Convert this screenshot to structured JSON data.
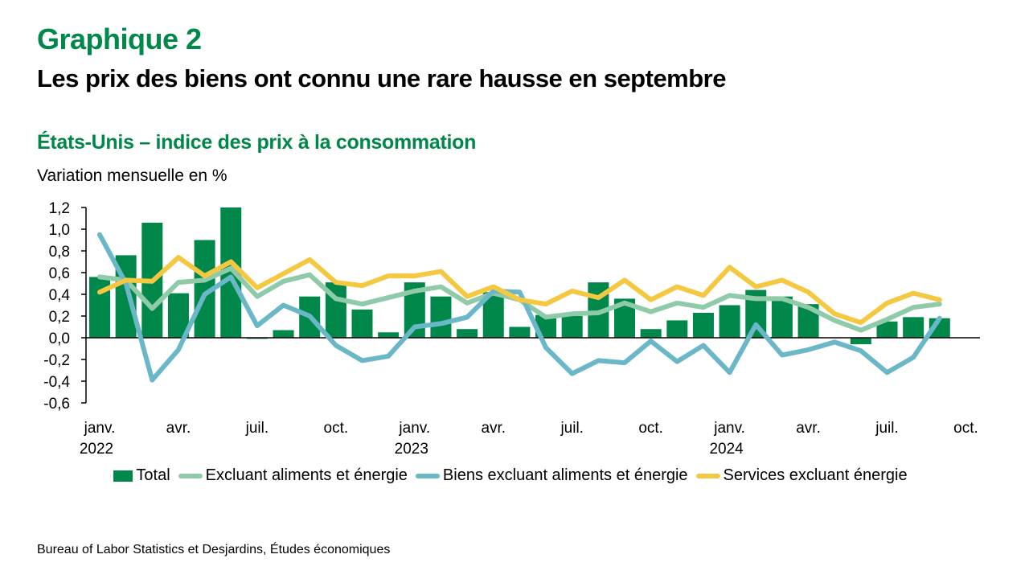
{
  "header": {
    "kicker": "Graphique 2",
    "title": "Les prix des biens ont connu une rare hausse en septembre"
  },
  "chart_data": {
    "type": "bar",
    "title": "États-Unis – indice des prix à la consommation",
    "ylabel": "Variation mensuelle en %",
    "xlabel": "",
    "ylim": [
      -0.6,
      1.2
    ],
    "yticks": [
      1.2,
      1.0,
      0.8,
      0.6,
      0.4,
      0.2,
      0.0,
      -0.2,
      -0.4,
      -0.6
    ],
    "ytick_labels": [
      "1,2",
      "1,0",
      "0,8",
      "0,6",
      "0,4",
      "0,2",
      "0,0",
      "-0,2",
      "-0,4",
      "-0,6"
    ],
    "grid": false,
    "legend_position": "bottom",
    "categories": [
      "2022-01",
      "2022-02",
      "2022-03",
      "2022-04",
      "2022-05",
      "2022-06",
      "2022-07",
      "2022-08",
      "2022-09",
      "2022-10",
      "2022-11",
      "2022-12",
      "2023-01",
      "2023-02",
      "2023-03",
      "2023-04",
      "2023-05",
      "2023-06",
      "2023-07",
      "2023-08",
      "2023-09",
      "2023-10",
      "2023-11",
      "2023-12",
      "2024-01",
      "2024-02",
      "2024-03",
      "2024-04",
      "2024-05",
      "2024-06",
      "2024-07",
      "2024-08",
      "2024-09"
    ],
    "x_tick_labels": [
      {
        "index": 0,
        "month": "janv.",
        "year": "2022"
      },
      {
        "index": 3,
        "month": "avr.",
        "year": ""
      },
      {
        "index": 6,
        "month": "juil.",
        "year": ""
      },
      {
        "index": 9,
        "month": "oct.",
        "year": ""
      },
      {
        "index": 12,
        "month": "janv.",
        "year": "2023"
      },
      {
        "index": 15,
        "month": "avr.",
        "year": ""
      },
      {
        "index": 18,
        "month": "juil.",
        "year": ""
      },
      {
        "index": 21,
        "month": "oct.",
        "year": ""
      },
      {
        "index": 24,
        "month": "janv.",
        "year": "2024"
      },
      {
        "index": 27,
        "month": "avr.",
        "year": ""
      },
      {
        "index": 30,
        "month": "juil.",
        "year": ""
      },
      {
        "index": 33,
        "month": "oct.",
        "year": ""
      }
    ],
    "series": [
      {
        "name": "Total",
        "kind": "bar",
        "color": "#00874A",
        "values": [
          0.56,
          0.76,
          1.06,
          0.41,
          0.9,
          1.2,
          -0.01,
          0.07,
          0.38,
          0.51,
          0.26,
          0.05,
          0.51,
          0.38,
          0.08,
          0.42,
          0.1,
          0.21,
          0.2,
          0.51,
          0.36,
          0.08,
          0.16,
          0.23,
          0.3,
          0.44,
          0.38,
          0.31,
          0.0,
          -0.06,
          0.15,
          0.19,
          0.18
        ]
      },
      {
        "name": "Excluant aliments et énergie",
        "kind": "line",
        "color": "#8FCBA8",
        "values": [
          0.56,
          0.53,
          0.27,
          0.51,
          0.53,
          0.64,
          0.38,
          0.52,
          0.58,
          0.36,
          0.31,
          0.37,
          0.43,
          0.47,
          0.32,
          0.41,
          0.35,
          0.19,
          0.22,
          0.23,
          0.32,
          0.24,
          0.32,
          0.28,
          0.39,
          0.36,
          0.36,
          0.28,
          0.16,
          0.07,
          0.17,
          0.28,
          0.31
        ]
      },
      {
        "name": "Biens excluant aliments et énergie",
        "kind": "line",
        "color": "#6AB7C8",
        "values": [
          0.95,
          0.5,
          -0.39,
          -0.11,
          0.4,
          0.56,
          0.11,
          0.3,
          0.2,
          -0.07,
          -0.21,
          -0.17,
          0.1,
          0.13,
          0.19,
          0.43,
          0.42,
          -0.09,
          -0.33,
          -0.21,
          -0.23,
          -0.03,
          -0.22,
          -0.07,
          -0.32,
          0.12,
          -0.16,
          -0.11,
          -0.04,
          -0.12,
          -0.32,
          -0.18,
          0.18
        ]
      },
      {
        "name": "Services excluant énergie",
        "kind": "line",
        "color": "#F5C842",
        "values": [
          0.42,
          0.53,
          0.52,
          0.74,
          0.57,
          0.7,
          0.46,
          0.59,
          0.72,
          0.51,
          0.48,
          0.57,
          0.57,
          0.61,
          0.38,
          0.47,
          0.35,
          0.31,
          0.43,
          0.37,
          0.53,
          0.35,
          0.47,
          0.39,
          0.65,
          0.47,
          0.53,
          0.42,
          0.22,
          0.14,
          0.32,
          0.41,
          0.35
        ]
      }
    ]
  },
  "legend": {
    "items": [
      {
        "label": "Total",
        "kind": "bar",
        "color": "#00874A"
      },
      {
        "label": "Excluant aliments et énergie",
        "kind": "line",
        "color": "#8FCBA8"
      },
      {
        "label": "Biens excluant aliments et énergie",
        "kind": "line",
        "color": "#6AB7C8"
      },
      {
        "label": "Services excluant énergie",
        "kind": "line",
        "color": "#F5C842"
      }
    ]
  },
  "footer": {
    "source": "Bureau of Labor Statistics et Desjardins, Études économiques"
  }
}
